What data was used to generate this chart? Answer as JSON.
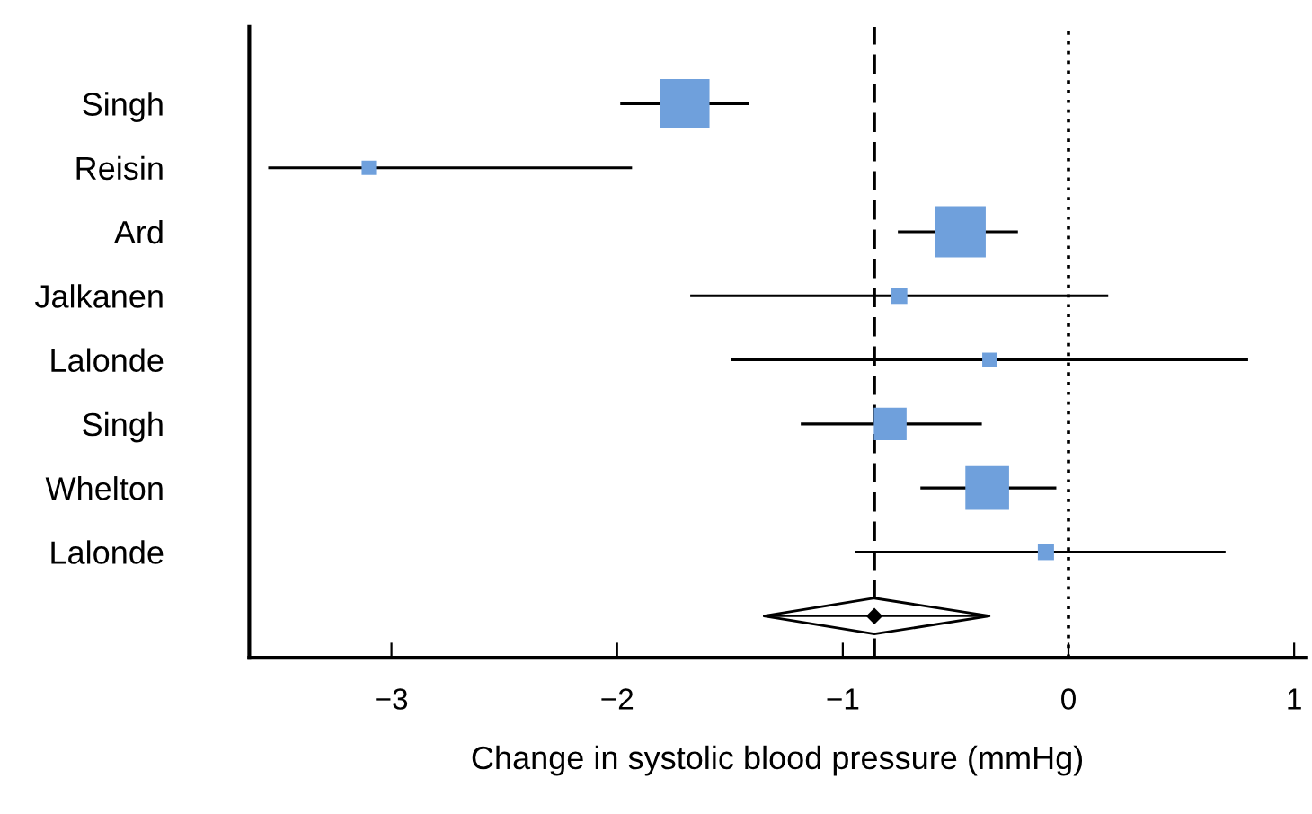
{
  "chart_data": {
    "type": "bubble",
    "orientation": "horizontal",
    "xlabel": "Change in systolic blood pressure (mmHg)",
    "categories": [
      "Singh",
      "Reisin",
      "Ard",
      "Jalkanen",
      "Lalonde",
      "Singh",
      "Whelton",
      "Lalonde",
      null
    ],
    "series": [
      {
        "color": "#6fa0dc",
        "marker": "square",
        "values": [
          -1.7,
          -3.1,
          -0.48,
          -0.75,
          -0.35,
          -0.79,
          -0.36,
          -0.1,
          null
        ],
        "sizes": [
          0.93,
          0.08,
          1,
          0.1,
          0.08,
          0.41,
          0.73,
          0.1,
          null
        ],
        "errors": [
          [
            -1.98,
            -1.42
          ],
          [
            -3.54,
            -1.94
          ],
          [
            -0.75,
            -0.23
          ],
          [
            -1.67,
            0.17
          ],
          [
            -1.49,
            0.79
          ],
          [
            -1.18,
            -0.39
          ],
          [
            -0.65,
            -0.06
          ],
          [
            -0.94,
            0.69
          ],
          null
        ]
      },
      {
        "color": "#000000",
        "marker": "diamond",
        "values": [
          null,
          null,
          null,
          null,
          null,
          null,
          null,
          null,
          -0.86
        ],
        "errors": [
          null,
          null,
          null,
          null,
          null,
          null,
          null,
          null,
          [
            -1.35,
            -0.35
          ]
        ]
      }
    ],
    "xlim": [
      -3.63,
      1.05
    ],
    "xticks": [
      {
        "value": -3,
        "label": "−3"
      },
      {
        "value": -2,
        "label": "−2"
      },
      {
        "value": -1,
        "label": "−1"
      },
      0,
      1
    ],
    "ref_lines": [
      {
        "axis": "x",
        "value": -0.86,
        "color": "#000000",
        "line_style": "dashed"
      },
      {
        "axis": "x",
        "value": 0,
        "color": "#000000",
        "line_style": "dotted"
      }
    ],
    "grid": false,
    "legend": false
  }
}
